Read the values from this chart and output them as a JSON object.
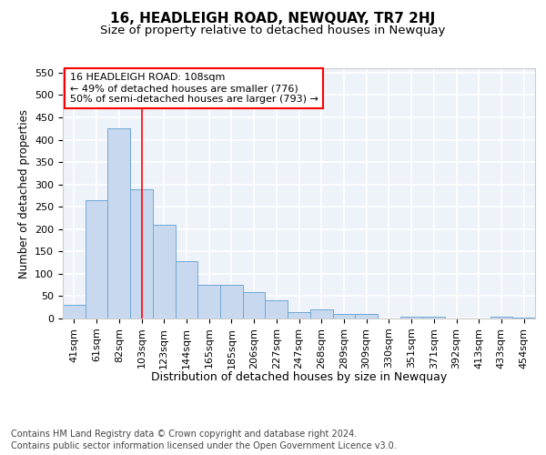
{
  "title": "16, HEADLEIGH ROAD, NEWQUAY, TR7 2HJ",
  "subtitle": "Size of property relative to detached houses in Newquay",
  "xlabel": "Distribution of detached houses by size in Newquay",
  "ylabel": "Number of detached properties",
  "categories": [
    "41sqm",
    "61sqm",
    "82sqm",
    "103sqm",
    "123sqm",
    "144sqm",
    "165sqm",
    "185sqm",
    "206sqm",
    "227sqm",
    "247sqm",
    "268sqm",
    "289sqm",
    "309sqm",
    "330sqm",
    "351sqm",
    "371sqm",
    "392sqm",
    "413sqm",
    "433sqm",
    "454sqm"
  ],
  "values": [
    30,
    265,
    425,
    290,
    210,
    128,
    75,
    75,
    60,
    40,
    15,
    20,
    10,
    10,
    1,
    5,
    5,
    1,
    1,
    5,
    3
  ],
  "bar_color": "#c8d9ef",
  "bar_edge_color": "#6fa8d6",
  "vline_x": 3.0,
  "vline_color": "red",
  "annotation_line1": "16 HEADLEIGH ROAD: 108sqm",
  "annotation_line2": "← 49% of detached houses are smaller (776)",
  "annotation_line3": "50% of semi-detached houses are larger (793) →",
  "annotation_box_color": "white",
  "annotation_box_edge": "red",
  "ylim": [
    0,
    560
  ],
  "yticks": [
    0,
    50,
    100,
    150,
    200,
    250,
    300,
    350,
    400,
    450,
    500,
    550
  ],
  "footer1": "Contains HM Land Registry data © Crown copyright and database right 2024.",
  "footer2": "Contains public sector information licensed under the Open Government Licence v3.0.",
  "bg_color": "#eef2f9",
  "grid_color": "white",
  "title_fontsize": 11,
  "subtitle_fontsize": 9.5,
  "xlabel_fontsize": 9,
  "ylabel_fontsize": 8.5,
  "tick_fontsize": 8,
  "annotation_fontsize": 8,
  "footer_fontsize": 7
}
